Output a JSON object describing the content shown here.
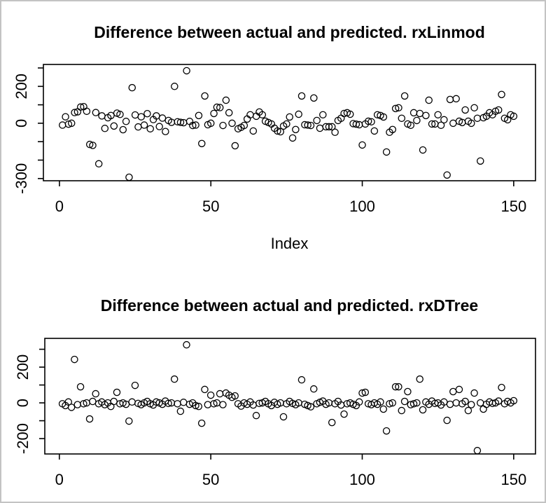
{
  "page": {
    "background": "#ffffff",
    "border_color": "#c3c3c3",
    "foreground": "#000000"
  },
  "chart_data": [
    {
      "type": "scatter",
      "title": "Difference between actual and predicted. rxLinmod",
      "xlabel": "Index",
      "ylabel": "",
      "marker": "open-circle",
      "marker_color": "#000000",
      "grid": false,
      "legend": "none",
      "x_rule": "sequential index 1..150",
      "xlim": [
        -5.3,
        157.2
      ],
      "ylim": [
        -312,
        319
      ],
      "xticks": [
        {
          "v": 0,
          "label": "0"
        },
        {
          "v": 50,
          "label": "50"
        },
        {
          "v": 100,
          "label": "100"
        },
        {
          "v": 150,
          "label": "150"
        }
      ],
      "yticks": [
        {
          "v": 300,
          "label": ""
        },
        {
          "v": 200,
          "label": "200"
        },
        {
          "v": 100,
          "label": ""
        },
        {
          "v": 0,
          "label": "0"
        },
        {
          "v": -100,
          "label": ""
        },
        {
          "v": -200,
          "label": ""
        },
        {
          "v": -300,
          "label": "-300"
        }
      ],
      "y": [
        -10,
        35,
        -5,
        0,
        58,
        62,
        88,
        90,
        65,
        -115,
        -120,
        58,
        -220,
        40,
        -28,
        30,
        42,
        -15,
        55,
        48,
        -35,
        10,
        -293,
        193,
        45,
        -20,
        35,
        -10,
        52,
        -30,
        20,
        40,
        -18,
        28,
        -45,
        15,
        5,
        200,
        8,
        5,
        3,
        285,
        10,
        -12,
        -10,
        42,
        -110,
        148,
        -8,
        0,
        53,
        87,
        85,
        -12,
        125,
        57,
        0,
        -122,
        -30,
        -22,
        -12,
        23,
        46,
        -42,
        38,
        61,
        46,
        11,
        4,
        -4,
        -27,
        -42,
        -46,
        -15,
        -4,
        34,
        -80,
        -34,
        49,
        148,
        -8,
        -10,
        -12,
        137,
        15,
        -27,
        46,
        -19,
        -19,
        -19,
        -49,
        15,
        27,
        53,
        57,
        49,
        -2,
        -5,
        -8,
        -118,
        -4,
        11,
        8,
        -42,
        46,
        42,
        34,
        -156,
        -49,
        -34,
        80,
        84,
        27,
        148,
        -4,
        -11,
        57,
        15,
        53,
        -145,
        42,
        125,
        -4,
        -4,
        46,
        -11,
        19,
        -281,
        129,
        0,
        133,
        11,
        4,
        72,
        11,
        0,
        84,
        27,
        -205,
        30,
        38,
        57,
        46,
        65,
        72,
        156,
        27,
        19,
        46,
        38
      ]
    },
    {
      "type": "scatter",
      "title": "Difference between actual and predicted. rxDTree",
      "xlabel": "",
      "ylabel": "",
      "marker": "open-circle",
      "marker_color": "#000000",
      "grid": false,
      "legend": "none",
      "x_rule": "sequential index 1..150",
      "xlim": [
        -4.8,
        157.2
      ],
      "ylim": [
        -286,
        361
      ],
      "xticks": [
        {
          "v": 0,
          "label": "0"
        },
        {
          "v": 50,
          "label": "50"
        },
        {
          "v": 100,
          "label": "100"
        },
        {
          "v": 150,
          "label": "150"
        }
      ],
      "yticks": [
        {
          "v": 300,
          "label": ""
        },
        {
          "v": 200,
          "label": "200"
        },
        {
          "v": 100,
          "label": ""
        },
        {
          "v": 0,
          "label": "0"
        },
        {
          "v": -100,
          "label": ""
        },
        {
          "v": -200,
          "label": "-200"
        }
      ],
      "y": [
        -5,
        -15,
        5,
        -25,
        243,
        -10,
        90,
        -5,
        0,
        -90,
        8,
        51,
        -5,
        5,
        -10,
        0,
        -20,
        8,
        59,
        -5,
        0,
        -8,
        -102,
        5,
        98,
        -3,
        -10,
        0,
        8,
        -5,
        -12,
        5,
        0,
        -8,
        10,
        -3,
        0,
        133,
        -5,
        -47,
        3,
        325,
        -8,
        0,
        -15,
        -20,
        -114,
        75,
        -10,
        43,
        -5,
        0,
        51,
        -10,
        55,
        43,
        31,
        39,
        -5,
        -18,
        0,
        -8,
        5,
        -12,
        -71,
        -3,
        0,
        8,
        -5,
        -15,
        3,
        -8,
        0,
        -78,
        -5,
        8,
        -3,
        -10,
        0,
        129,
        -8,
        -15,
        -22,
        78,
        -5,
        3,
        10,
        -8,
        0,
        -110,
        -5,
        8,
        -12,
        -63,
        -5,
        0,
        -8,
        -15,
        5,
        55,
        59,
        -5,
        -10,
        0,
        -8,
        5,
        -35,
        -157,
        -5,
        0,
        90,
        90,
        -43,
        8,
        63,
        -10,
        -5,
        0,
        133,
        -39,
        5,
        -8,
        10,
        -3,
        0,
        -12,
        5,
        -98,
        -8,
        63,
        0,
        75,
        -5,
        8,
        -43,
        -10,
        55,
        -267,
        0,
        -35,
        -8,
        5,
        -3,
        0,
        10,
        86,
        -5,
        8,
        0,
        12
      ]
    }
  ]
}
